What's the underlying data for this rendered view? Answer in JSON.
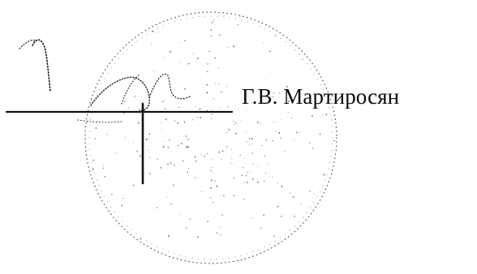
{
  "signature_block": {
    "signatory_name": "Г.В. Мартиросян"
  },
  "colors": {
    "ink": "#0a0a0a",
    "background": "#ffffff",
    "stamp_dots": "#2b2b2b"
  },
  "icons": {
    "seal": "round-seal-icon",
    "signature": "handwritten-signature-icon"
  }
}
